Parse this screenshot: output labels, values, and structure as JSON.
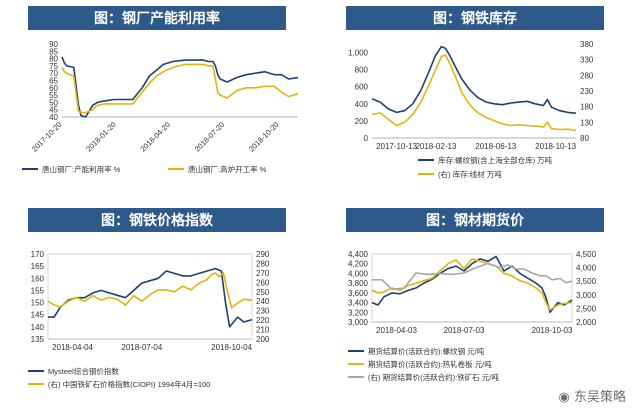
{
  "colors": {
    "title_bg": "#2e5a8b",
    "navy": "#1f3f73",
    "gold": "#e3b30b",
    "gray": "#a6a6a6"
  },
  "watermark": "东吴策略",
  "chart_data": [
    {
      "id": "c1",
      "type": "line",
      "title": "图：钢厂产能利用率",
      "x_tick_labels": [
        "2017-10-20",
        "2018-01-20",
        "2018-04-20",
        "2018-07-20",
        "2018-10-20"
      ],
      "y_left": {
        "lim": [
          40,
          90
        ],
        "ticks": [
          40,
          45,
          50,
          55,
          60,
          65,
          70,
          75,
          80,
          85,
          90
        ]
      },
      "series": [
        {
          "name": "唐山钢厂:产能利用率 %",
          "color": "#1f3f73",
          "axis": "left",
          "x": [
            0,
            0.01,
            0.02,
            0.05,
            0.07,
            0.08,
            0.1,
            0.13,
            0.15,
            0.18,
            0.22,
            0.3,
            0.34,
            0.37,
            0.4,
            0.43,
            0.47,
            0.52,
            0.56,
            0.6,
            0.62,
            0.64,
            0.65,
            0.66,
            0.67,
            0.7,
            0.74,
            0.78,
            0.82,
            0.86,
            0.9,
            0.93,
            0.96,
            1.0
          ],
          "values": [
            81,
            77,
            75,
            74,
            48,
            41,
            40,
            48,
            50,
            51,
            52,
            52,
            60,
            68,
            72,
            76,
            78,
            79,
            79,
            79,
            78,
            78,
            75,
            69,
            66,
            64,
            67,
            69,
            70,
            71,
            69,
            69,
            66,
            67
          ]
        },
        {
          "name": "唐山钢厂:高炉开工率 %",
          "color": "#e3b30b",
          "axis": "left",
          "x": [
            0,
            0.01,
            0.02,
            0.05,
            0.07,
            0.08,
            0.1,
            0.13,
            0.15,
            0.18,
            0.22,
            0.3,
            0.34,
            0.37,
            0.4,
            0.43,
            0.47,
            0.52,
            0.56,
            0.6,
            0.62,
            0.64,
            0.65,
            0.66,
            0.67,
            0.7,
            0.74,
            0.78,
            0.82,
            0.86,
            0.9,
            0.93,
            0.96,
            1.0
          ],
          "values": [
            74,
            71,
            70,
            68,
            44,
            43,
            43,
            45,
            48,
            49,
            49,
            49,
            57,
            63,
            68,
            71,
            74,
            76,
            76,
            76,
            75,
            75,
            66,
            57,
            55,
            53,
            58,
            60,
            60,
            61,
            61,
            57,
            54,
            56
          ]
        }
      ]
    },
    {
      "id": "c2",
      "type": "line",
      "title": "图：钢铁库存",
      "x_tick_labels": [
        "2017-10-13",
        "2018-02-13",
        "2018-06-13",
        "2018-10-13"
      ],
      "y_left": {
        "lim": [
          0,
          1100
        ],
        "ticks": [
          0,
          200,
          400,
          600,
          800,
          1000
        ],
        "tick_labels": [
          "0",
          "200",
          "400",
          "600",
          "800",
          "1,000"
        ]
      },
      "y_right": {
        "lim": [
          80,
          380
        ],
        "ticks": [
          80,
          130,
          180,
          230,
          280,
          330,
          380
        ]
      },
      "series": [
        {
          "name": "库存:螺纹钢(含上海全部仓库) 万吨",
          "color": "#1f3f73",
          "axis": "left",
          "x": [
            0,
            0.04,
            0.08,
            0.12,
            0.16,
            0.2,
            0.24,
            0.28,
            0.31,
            0.34,
            0.36,
            0.38,
            0.41,
            0.44,
            0.48,
            0.52,
            0.56,
            0.6,
            0.64,
            0.68,
            0.72,
            0.76,
            0.8,
            0.84,
            0.86,
            0.88,
            0.92,
            0.96,
            1.0
          ],
          "values": [
            460,
            420,
            340,
            300,
            320,
            400,
            560,
            780,
            960,
            1070,
            1050,
            970,
            830,
            690,
            560,
            470,
            420,
            400,
            390,
            410,
            420,
            430,
            400,
            380,
            450,
            360,
            320,
            300,
            290
          ]
        },
        {
          "name": "(右) 库存:线材 万吨",
          "color": "#e3b30b",
          "axis": "right",
          "x": [
            0,
            0.04,
            0.08,
            0.12,
            0.16,
            0.2,
            0.24,
            0.28,
            0.31,
            0.34,
            0.36,
            0.38,
            0.41,
            0.44,
            0.48,
            0.52,
            0.56,
            0.6,
            0.64,
            0.68,
            0.72,
            0.76,
            0.8,
            0.84,
            0.86,
            0.88,
            0.92,
            0.96,
            1.0
          ],
          "values": [
            155,
            160,
            140,
            120,
            130,
            155,
            195,
            250,
            295,
            340,
            345,
            320,
            275,
            225,
            185,
            160,
            145,
            135,
            125,
            120,
            122,
            120,
            118,
            115,
            130,
            110,
            107,
            108,
            104
          ]
        }
      ],
      "legend": [
        "库存:螺纹钢(含上海全部仓库) 万吨",
        "(右) 库存:线材 万吨"
      ]
    },
    {
      "id": "c3",
      "type": "line",
      "title": "图：钢铁价格指数",
      "x_tick_labels": [
        "2018-04-04",
        "2018-07-04",
        "2018-10-04"
      ],
      "y_left": {
        "lim": [
          135,
          170
        ],
        "ticks": [
          135,
          140,
          145,
          150,
          155,
          160,
          165,
          170
        ]
      },
      "y_right": {
        "lim": [
          200,
          290
        ],
        "ticks": [
          200,
          210,
          220,
          230,
          240,
          250,
          260,
          270,
          280,
          290
        ]
      },
      "series": [
        {
          "name": "Mysteel综合钢价指数",
          "color": "#1f3f73",
          "axis": "left",
          "x": [
            0,
            0.03,
            0.06,
            0.1,
            0.14,
            0.18,
            0.22,
            0.26,
            0.3,
            0.34,
            0.38,
            0.42,
            0.46,
            0.5,
            0.54,
            0.58,
            0.62,
            0.66,
            0.7,
            0.74,
            0.78,
            0.82,
            0.85,
            0.87,
            0.89,
            0.91,
            0.93,
            0.96,
            1.0
          ],
          "values": [
            144,
            144,
            148,
            151,
            152,
            152,
            154,
            155,
            154,
            153,
            152,
            155,
            158,
            159,
            160,
            163,
            162,
            161,
            161,
            162,
            163,
            164,
            163,
            150,
            140,
            142,
            144,
            142,
            143
          ]
        },
        {
          "name": "(右) 中国铁矿石价格指数(CIOPI) 1994年4月=100",
          "color": "#e3b30b",
          "axis": "right",
          "x": [
            0,
            0.03,
            0.06,
            0.1,
            0.14,
            0.18,
            0.22,
            0.26,
            0.3,
            0.34,
            0.38,
            0.42,
            0.46,
            0.5,
            0.54,
            0.58,
            0.62,
            0.66,
            0.7,
            0.74,
            0.78,
            0.8,
            0.82,
            0.84,
            0.86,
            0.88,
            0.9,
            0.93,
            0.96,
            1.0
          ],
          "values": [
            240,
            236,
            234,
            240,
            244,
            240,
            246,
            241,
            244,
            242,
            236,
            246,
            240,
            247,
            252,
            252,
            250,
            256,
            252,
            259,
            263,
            268,
            270,
            266,
            270,
            250,
            233,
            238,
            242,
            241
          ]
        }
      ],
      "legend": [
        "Mysteel综合钢价指数",
        "(右) 中国铁矿石价格指数(CIOPI) 1994年4月=100"
      ]
    },
    {
      "id": "c4",
      "type": "line",
      "title": "图：钢材期货价",
      "x_tick_labels": [
        "2018-04-03",
        "2018-07-03",
        "2018-10-03"
      ],
      "y_left": {
        "lim": [
          3000,
          4400
        ],
        "ticks": [
          3000,
          3200,
          3400,
          3600,
          3800,
          4000,
          4200,
          4400
        ],
        "tick_labels": [
          "3,000",
          "3,200",
          "3,400",
          "3,600",
          "3,800",
          "4,000",
          "4,200",
          "4,400"
        ]
      },
      "y_right": {
        "lim": [
          2000,
          4500
        ],
        "ticks": [
          2000,
          2500,
          3000,
          3500,
          4000,
          4500
        ],
        "tick_labels": [
          "2,000",
          "2,500",
          "3,000",
          "3,500",
          "4,000",
          "4,500"
        ]
      },
      "series": [
        {
          "name": "期货结算价(活跃合约):螺纹钢 元/吨",
          "color": "#1f3f73",
          "axis": "left",
          "x": [
            0,
            0.03,
            0.06,
            0.1,
            0.14,
            0.18,
            0.22,
            0.26,
            0.3,
            0.34,
            0.38,
            0.42,
            0.46,
            0.5,
            0.54,
            0.58,
            0.62,
            0.66,
            0.7,
            0.74,
            0.78,
            0.82,
            0.85,
            0.87,
            0.89,
            0.91,
            0.93,
            0.96,
            1.0
          ],
          "values": [
            3400,
            3350,
            3520,
            3600,
            3580,
            3650,
            3700,
            3800,
            3880,
            4000,
            4100,
            4150,
            4050,
            4200,
            4300,
            4250,
            4350,
            4050,
            4150,
            4000,
            3900,
            3800,
            3700,
            3500,
            3200,
            3300,
            3400,
            3350,
            3450
          ]
        },
        {
          "name": "期货结算价(活跃合约):热轧卷板 元/吨",
          "color": "#e3b30b",
          "axis": "left",
          "x": [
            0,
            0.03,
            0.06,
            0.1,
            0.14,
            0.18,
            0.22,
            0.26,
            0.3,
            0.34,
            0.38,
            0.42,
            0.46,
            0.5,
            0.54,
            0.58,
            0.62,
            0.66,
            0.7,
            0.74,
            0.78,
            0.82,
            0.85,
            0.87,
            0.89,
            0.91,
            0.93,
            0.96,
            1.0
          ],
          "values": [
            3650,
            3600,
            3620,
            3700,
            3650,
            3750,
            3800,
            3850,
            3900,
            4050,
            4200,
            4280,
            4100,
            4300,
            4250,
            4200,
            4150,
            4000,
            3950,
            3850,
            3800,
            3700,
            3600,
            3400,
            3250,
            3300,
            3350,
            3380,
            3400
          ]
        },
        {
          "name": "(右) 期货结算价(活跃合约):铁矿石 元/吨",
          "color": "#a6a6a6",
          "axis": "right",
          "x": [
            0,
            0.05,
            0.1,
            0.16,
            0.22,
            0.28,
            0.34,
            0.4,
            0.46,
            0.52,
            0.58,
            0.64,
            0.68,
            0.72,
            0.76,
            0.8,
            0.84,
            0.87,
            0.9,
            0.94,
            0.97,
            1.0
          ],
          "values": [
            3550,
            3550,
            3200,
            3250,
            3800,
            3750,
            3780,
            3750,
            3800,
            4000,
            4150,
            4000,
            4100,
            3950,
            3950,
            3800,
            3700,
            3700,
            3550,
            3600,
            3450,
            3500
          ]
        }
      ],
      "legend": [
        "期货结算价(活跃合约):螺纹钢 元/吨",
        "期货结算价(活跃合约):热轧卷板 元/吨",
        "(右) 期货结算价(活跃合约):铁矿石 元/吨"
      ]
    }
  ]
}
